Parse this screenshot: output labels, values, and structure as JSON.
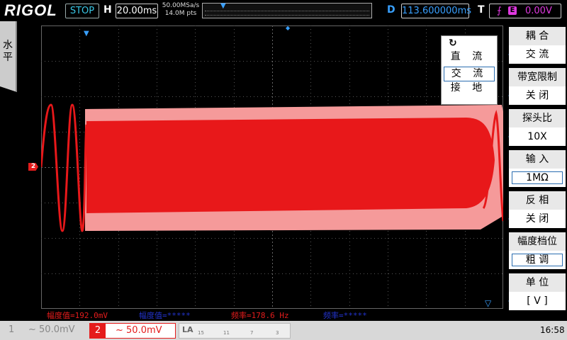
{
  "header": {
    "logo": "RIGOL",
    "run_status": "STOP",
    "horizontal_label": "H",
    "timebase": "20.00ms",
    "sample_rate": "50.00MSa/s",
    "memory_depth": "14.0M pts",
    "delay_label": "D",
    "delay": "113.600000ms",
    "trigger_label": "T",
    "trigger_source": "E",
    "trigger_level": "0.00V"
  },
  "side_tab": {
    "label": "水平"
  },
  "channel2_marker": "2",
  "coupling_popup": {
    "options": [
      "直 流",
      "交 流",
      "接 地"
    ],
    "selected": "交 流"
  },
  "menu": {
    "items": [
      {
        "title": "耦 合",
        "value": "交 流"
      },
      {
        "title": "带宽限制",
        "value": "关 闭"
      },
      {
        "title": "探头比",
        "value": "10X"
      },
      {
        "title": "输 入",
        "value": "1MΩ"
      },
      {
        "title": "反 相",
        "value": "关 闭"
      },
      {
        "title": "幅度档位",
        "value": "粗 调"
      },
      {
        "title": "单 位",
        "value": "[ V ]"
      }
    ]
  },
  "measurements": [
    {
      "text": "幅度值=192.0mV",
      "color": "#e51c1c"
    },
    {
      "text": "幅度值=*****",
      "color": "#2233cc"
    },
    {
      "text": "频率=178.6 Hz",
      "color": "#e51c1c"
    },
    {
      "text": "频率=*****",
      "color": "#2233cc"
    }
  ],
  "bottom": {
    "ch1_number": "1",
    "ch1_scale": "~ 50.0mV",
    "ch2_number": "2",
    "ch2_scale": "~ 50.0mV",
    "la_label": "LA",
    "la_ticks": [
      "15",
      "11",
      "7",
      "3"
    ],
    "time": "16:58"
  },
  "colors": {
    "ch2": "#e51c1c",
    "trigger": "#e039e0",
    "delay": "#39a0ff",
    "run_status": "#39c7e6"
  }
}
